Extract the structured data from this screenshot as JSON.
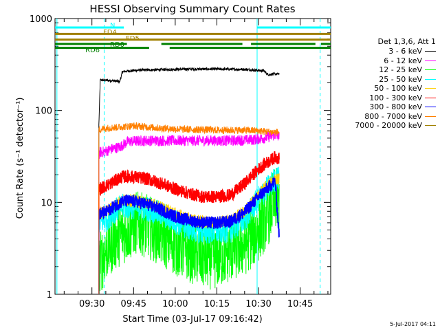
{
  "chart_data": {
    "type": "line",
    "title": "HESSI Observing Summary Count Rates",
    "xlabel": "Start Time (03-Jul-17 09:16:42)",
    "ylabel": "Count Rate (s⁻¹ detector⁻¹)",
    "yscale": "log",
    "ylim": [
      1,
      1000
    ],
    "xlim_minutes": [
      556.7,
      656
    ],
    "x_ticks": [
      {
        "m": 570,
        "label": "09:30"
      },
      {
        "m": 585,
        "label": "09:45"
      },
      {
        "m": 600,
        "label": "10:00"
      },
      {
        "m": 615,
        "label": "10:15"
      },
      {
        "m": 630,
        "label": "10:30"
      },
      {
        "m": 645,
        "label": "10:45"
      }
    ],
    "y_ticks": [
      {
        "v": 1,
        "label": "1"
      },
      {
        "v": 10,
        "label": "10"
      },
      {
        "v": 100,
        "label": "100"
      },
      {
        "v": 1000,
        "label": "1000"
      }
    ],
    "legend_title": "Det 1,3,6, Att 1",
    "series": [
      {
        "name": "3 - 6 keV",
        "color": "#000000",
        "x": [
          572.5,
          573,
          578,
          580,
          581,
          587,
          595,
          605,
          615,
          625,
          632,
          633,
          634,
          635,
          637.5
        ],
        "values": [
          70,
          215,
          210,
          205,
          265,
          275,
          278,
          282,
          282,
          280,
          270,
          250,
          245,
          250,
          248
        ]
      },
      {
        "name": "6 - 12 keV",
        "color": "#ff00ff",
        "x": [
          572.5,
          573,
          575,
          577,
          580,
          583,
          590,
          600,
          610,
          620,
          628,
          632,
          636,
          637.5
        ],
        "values": [
          33,
          35,
          36,
          38,
          40,
          46,
          47,
          47,
          47,
          47,
          48,
          50,
          54,
          52
        ]
      },
      {
        "name": "12 - 25 keV",
        "color": "#00ff00",
        "x": [
          572.5,
          575,
          578,
          580,
          583,
          586,
          590,
          595,
          600,
          605,
          610,
          615,
          620,
          625,
          630,
          633,
          636,
          637.5
        ],
        "values": [
          2,
          3,
          4,
          4.5,
          5,
          6,
          5.5,
          4.5,
          3.5,
          3,
          2.5,
          2.5,
          3,
          3.5,
          5,
          7,
          11,
          10
        ]
      },
      {
        "name": "25 - 50 keV",
        "color": "#00ffff",
        "x": [
          572.5,
          575,
          578,
          581,
          585,
          590,
          595,
          600,
          605,
          610,
          615,
          620,
          625,
          630,
          633,
          636,
          637.5
        ],
        "values": [
          6,
          6.5,
          8,
          9,
          9,
          8.5,
          7.5,
          6.2,
          5.2,
          4.8,
          4.8,
          5,
          6.5,
          11,
          14,
          18,
          18
        ]
      },
      {
        "name": "50 - 100 keV",
        "color": "#ffd000",
        "x": [
          572.5,
          575,
          578,
          581,
          585,
          590,
          595,
          600,
          605,
          610,
          615,
          620,
          625,
          630,
          633,
          636,
          637.5
        ],
        "values": [
          7.5,
          8,
          9.3,
          10.5,
          10.5,
          9.8,
          8.8,
          7.5,
          6.6,
          6.1,
          6.1,
          6.4,
          8,
          12,
          15,
          18,
          18
        ]
      },
      {
        "name": "100 - 300 keV",
        "color": "#ff0000",
        "x": [
          572.5,
          575,
          578,
          581,
          585,
          590,
          595,
          600,
          605,
          610,
          615,
          620,
          625,
          630,
          633,
          636,
          637.5
        ],
        "values": [
          14,
          15,
          17,
          19,
          19,
          18,
          16,
          14,
          12.5,
          11.5,
          11.5,
          12,
          16,
          23,
          27,
          31,
          30
        ]
      },
      {
        "name": "300 - 800 keV",
        "color": "#0000ff",
        "x": [
          572.5,
          575,
          578,
          581,
          585,
          590,
          595,
          600,
          605,
          610,
          615,
          620,
          625,
          630,
          633,
          636,
          637.5
        ],
        "values": [
          7.5,
          7.8,
          9,
          10.3,
          10.3,
          9.5,
          8.3,
          7,
          6.4,
          6,
          6,
          6.2,
          7.8,
          11.5,
          14,
          17,
          4
        ]
      },
      {
        "name": "800 - 7000 keV",
        "color": "#ff8000",
        "x": [
          572.5,
          575,
          580,
          585,
          590,
          595,
          600,
          605,
          610,
          615,
          620,
          625,
          630,
          635,
          637.5
        ],
        "values": [
          62,
          64,
          66,
          68,
          66,
          64,
          63,
          62,
          62,
          61,
          61,
          61,
          60,
          58,
          58
        ]
      },
      {
        "name": "7000 - 20000 keV",
        "color": "#a08000",
        "x": [],
        "values": []
      }
    ],
    "flag_bars": [
      {
        "label": "N",
        "color": "#00ffff",
        "y": 800,
        "segments": [
          [
            556.7,
            581.5
          ],
          [
            629.5,
            656
          ]
        ]
      },
      {
        "label": "FD4",
        "color": "#a08000",
        "y": 680,
        "segments": [
          [
            556.7,
            656
          ]
        ]
      },
      {
        "label": "FD5",
        "color": "#a08000",
        "y": 590,
        "segments": [
          [
            556.7,
            656
          ]
        ]
      },
      {
        "label": "RD0",
        "color": "#008000",
        "y": 530,
        "segments": [
          [
            556.7,
            582.6
          ],
          [
            595,
            624.2
          ],
          [
            627.3,
            650.5
          ],
          [
            652.5,
            656
          ]
        ]
      },
      {
        "label": "RD6",
        "color": "#008000",
        "y": 480,
        "segments": [
          [
            556.7,
            590.6
          ],
          [
            598,
            656
          ]
        ]
      }
    ],
    "vlines": [
      {
        "m": 557.4,
        "color": "#00ffff",
        "style": "solid"
      },
      {
        "m": 574.4,
        "color": "#00ffff",
        "style": "dashed"
      },
      {
        "m": 629.5,
        "color": "#00ffff",
        "style": "solid"
      },
      {
        "m": 652.2,
        "color": "#00ffff",
        "style": "dashed"
      }
    ],
    "timestamp": "5-Jul-2017 04:11"
  }
}
